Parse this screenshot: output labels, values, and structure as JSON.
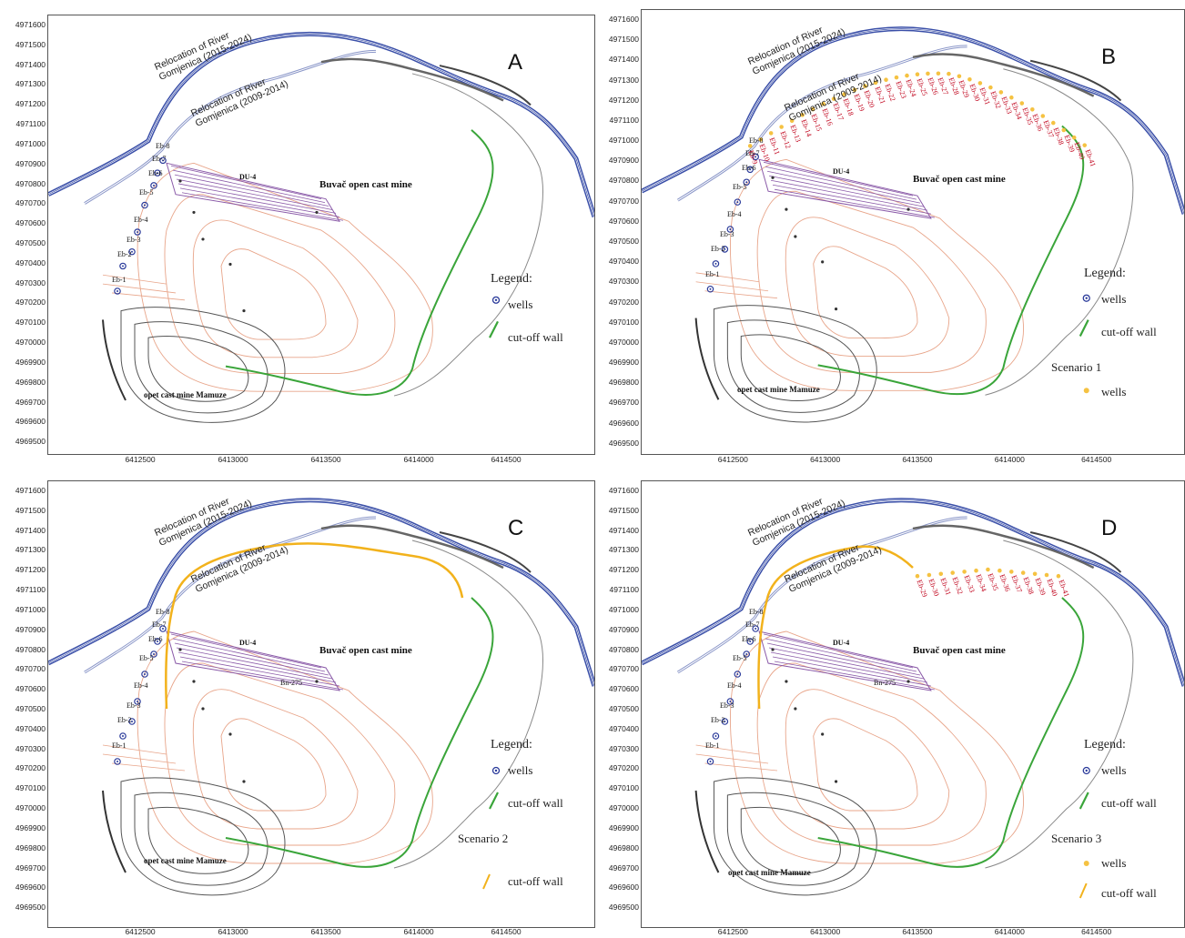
{
  "y_ticks": [
    "4971600",
    "4971500",
    "4971400",
    "4971300",
    "4971200",
    "4971100",
    "4971000",
    "4970900",
    "4970800",
    "4970700",
    "4970600",
    "4970500",
    "4970400",
    "4970300",
    "4970200",
    "4970100",
    "4970000",
    "4969900",
    "4969800",
    "4969700",
    "4969600",
    "4969500"
  ],
  "x_ticks": [
    "6412500",
    "6413000",
    "6413500",
    "6414000",
    "6414500"
  ],
  "labels": {
    "river_new": "Relocation of River\nGomjenica (2015-2024)",
    "river_old": "Relocation of River\nGomjenica (2009-2014)",
    "buvac": "Buvač open cast mine",
    "mamuze": "opet cast mine Mamuze",
    "du4": "DU-4",
    "bn275": "Bn-275"
  },
  "wells": [
    "Eb-1",
    "Eb-2",
    "Eb-3",
    "Eb-4",
    "Eb-5",
    "Eb-6",
    "Eb-7",
    "Eb-8"
  ],
  "scenario_wells_b": [
    "Eb-9",
    "Eb-10",
    "Eb-11",
    "Eb-12",
    "Eb-13",
    "Eb-14",
    "Eb-15",
    "Eb-16",
    "Eb-17",
    "Eb-18",
    "Eb-19",
    "Eb-20",
    "Eb-21",
    "Eb-22",
    "Eb-23",
    "Eb-24",
    "Eb-25",
    "Eb-26",
    "Eb-27",
    "Eb-28",
    "Eb-29",
    "Eb-30",
    "Eb-31",
    "Eb-32",
    "Eb-33",
    "Eb-34",
    "Eb-35",
    "Eb-36",
    "Eb-37",
    "Eb-38",
    "Eb-39",
    "Eb-40",
    "Eb-41"
  ],
  "scenario_wells_d": [
    "Eb-29",
    "Eb-30",
    "Eb-31",
    "Eb-32",
    "Eb-33",
    "Eb-34",
    "Eb-35",
    "Eb-36",
    "Eb-37",
    "Eb-38",
    "Eb-39",
    "Eb-40",
    "Eb-41"
  ],
  "panels": [
    {
      "letter": "A",
      "legend_title": "Legend:",
      "wells_label": "wells",
      "cutoff_label": "cut-off wall",
      "scenario": "",
      "scenario_item": ""
    },
    {
      "letter": "B",
      "legend_title": "Legend:",
      "wells_label": "wells",
      "cutoff_label": "cut-off wall",
      "scenario": "Scenario 1",
      "scenario_item": "wells"
    },
    {
      "letter": "C",
      "legend_title": "Legend:",
      "wells_label": "wells",
      "cutoff_label": "cut-off wall",
      "scenario": "Scenario 2",
      "scenario_item": "cut-off wall"
    },
    {
      "letter": "D",
      "legend_title": "Legend:",
      "wells_label": "wells",
      "cutoff_label": "cut-off wall",
      "scenario": "Scenario 3",
      "scenario_item": "wells",
      "scenario_item2": "cut-off wall"
    }
  ],
  "colors": {
    "river_new": "#3a4fa8",
    "river_old": "#8a96c8",
    "cutoff_wall": "#3aa53a",
    "scenario_wall": "#f2b21c",
    "pit": "#e8a58a",
    "dump": "#8a5aa8",
    "mamuze": "#555555",
    "well": "#2a3a9a",
    "scenario_well": "#f5c242",
    "scenario_label": "#c0001a"
  }
}
